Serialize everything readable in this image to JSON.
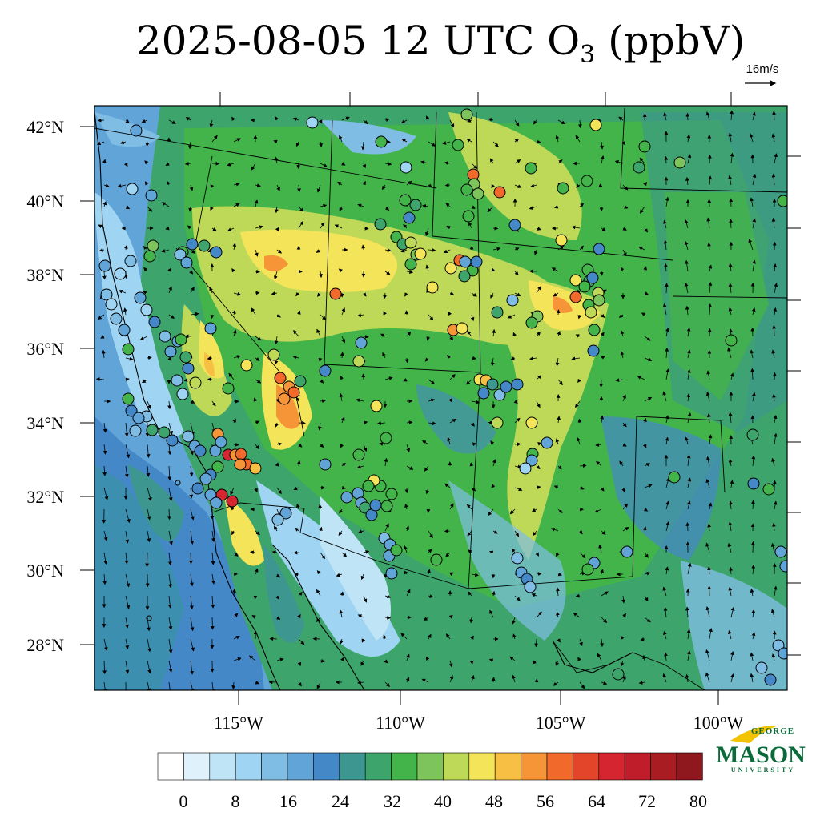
{
  "title": {
    "prefix": "2025-08-05 12 UTC O",
    "subscript": "3",
    "suffix": " (ppbV)"
  },
  "reference_vector": {
    "label": "16m/s",
    "speed_ms": 16
  },
  "axes": {
    "lat_labels": [
      "42°N",
      "40°N",
      "38°N",
      "36°N",
      "34°N",
      "32°N",
      "30°N",
      "28°N"
    ],
    "lon_labels": [
      "115°W",
      "110°W",
      "105°W",
      "100°W"
    ]
  },
  "colorbar": {
    "labels": [
      "0",
      "8",
      "16",
      "24",
      "32",
      "40",
      "48",
      "56",
      "64",
      "72",
      "80"
    ],
    "colors": [
      "#ffffff",
      "#dff1fb",
      "#bfe4f6",
      "#9fd5f2",
      "#7fbde4",
      "#61a4d8",
      "#4488c8",
      "#3d9690",
      "#3da46c",
      "#43b44a",
      "#7dc45c",
      "#bed858",
      "#f4e45a",
      "#f8bf45",
      "#f69538",
      "#f16a2b",
      "#e3452a",
      "#d42530",
      "#bf1d2a",
      "#a81c22",
      "#8e181e"
    ]
  },
  "logo": {
    "line1": "GEORGE",
    "line2": "MASON",
    "line3": "UNIVERSITY"
  }
}
